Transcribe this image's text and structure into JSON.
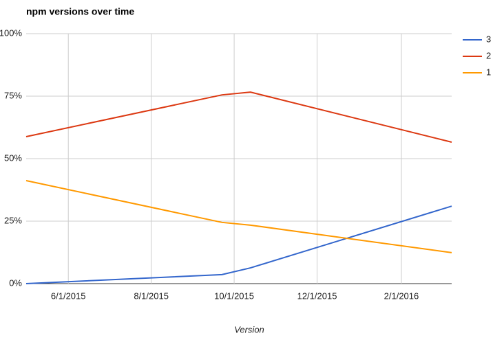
{
  "chart_data": {
    "type": "line",
    "title": "npm versions over time",
    "x_label": "Version",
    "x": [
      "5/1/2015",
      "9/22/2015",
      "10/13/2015",
      "3/9/2016"
    ],
    "series": [
      {
        "name": "3",
        "color": "#3366cc",
        "values": [
          0,
          3.6,
          6.3,
          31
        ]
      },
      {
        "name": "2",
        "color": "#dc3912",
        "values": [
          58.8,
          75.5,
          76.6,
          56.6
        ]
      },
      {
        "name": "1",
        "color": "#ff9900",
        "values": [
          41.2,
          24.5,
          23.4,
          12.4
        ]
      }
    ],
    "xlim": [
      "5/1/2015",
      "3/9/2016"
    ],
    "xticks": [
      "6/1/2015",
      "8/1/2015",
      "10/1/2015",
      "12/1/2015",
      "2/1/2016"
    ],
    "ylim": [
      0,
      100
    ],
    "yticks": [
      {
        "value": 0,
        "label": "0%"
      },
      {
        "value": 25,
        "label": "25%"
      },
      {
        "value": 50,
        "label": "50%"
      },
      {
        "value": 75,
        "label": "75%"
      },
      {
        "value": 100,
        "label": "100%"
      }
    ],
    "grid": true,
    "legend": "right"
  }
}
